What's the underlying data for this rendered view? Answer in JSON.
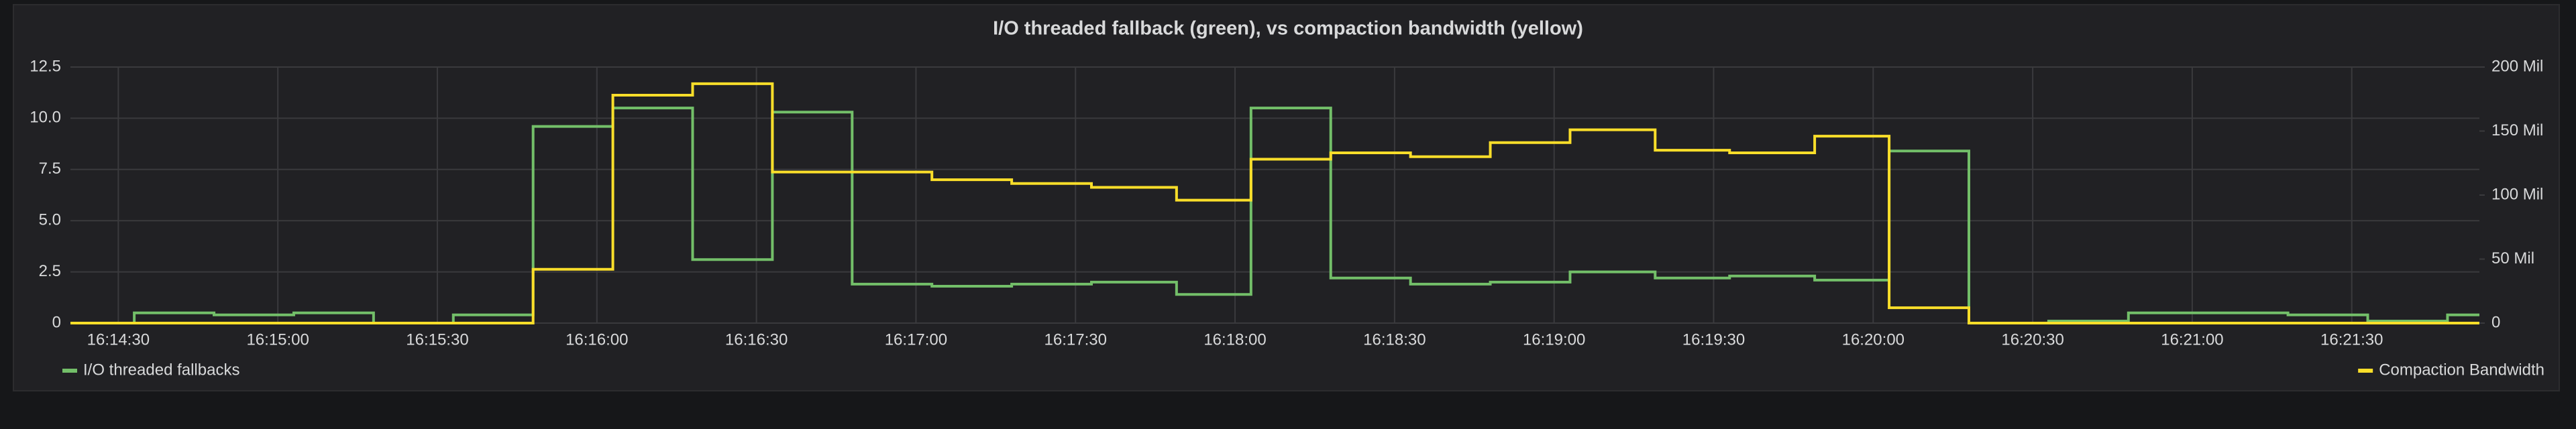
{
  "chart_data": {
    "type": "line",
    "step": "after",
    "title": "I/O threaded fallback (green), vs compaction bandwidth (yellow)",
    "xlim": [
      58461,
      58914
    ],
    "xticks": [
      {
        "value": 58470,
        "label": "16:14:30"
      },
      {
        "value": 58500,
        "label": "16:15:00"
      },
      {
        "value": 58530,
        "label": "16:15:30"
      },
      {
        "value": 58560,
        "label": "16:16:00"
      },
      {
        "value": 58590,
        "label": "16:16:30"
      },
      {
        "value": 58620,
        "label": "16:17:00"
      },
      {
        "value": 58650,
        "label": "16:17:30"
      },
      {
        "value": 58680,
        "label": "16:18:00"
      },
      {
        "value": 58710,
        "label": "16:18:30"
      },
      {
        "value": 58740,
        "label": "16:19:00"
      },
      {
        "value": 58770,
        "label": "16:19:30"
      },
      {
        "value": 58800,
        "label": "16:20:00"
      },
      {
        "value": 58830,
        "label": "16:20:30"
      },
      {
        "value": 58860,
        "label": "16:21:00"
      },
      {
        "value": 58890,
        "label": "16:21:30"
      }
    ],
    "ylim": [
      0,
      12.5
    ],
    "yticks": [
      0,
      {
        "value": 2.5,
        "label": "2.5"
      },
      {
        "value": 5,
        "label": "5.0"
      },
      {
        "value": 7.5,
        "label": "7.5"
      },
      {
        "value": 10,
        "label": "10.0"
      },
      {
        "value": 12.5,
        "label": "12.5"
      }
    ],
    "y2lim": [
      0,
      200000000
    ],
    "y2ticks": [
      0,
      {
        "value": 50000000,
        "label": "50 Mil"
      },
      {
        "value": 100000000,
        "label": "100 Mil"
      },
      {
        "value": 150000000,
        "label": "150 Mil"
      },
      {
        "value": 200000000,
        "label": "200 Mil"
      }
    ],
    "grid": true,
    "series": [
      {
        "name": "I/O threaded fallbacks",
        "color": "#73bf69",
        "x": [
          58461,
          58473,
          58488,
          58503,
          58518,
          58533,
          58548,
          58563,
          58578,
          58593,
          58608,
          58623,
          58638,
          58653,
          58669,
          58683,
          58698,
          58713,
          58728,
          58743,
          58759,
          58773,
          58789,
          58803,
          58818,
          58833,
          58848,
          58878,
          58893,
          58908,
          58914
        ],
        "values": [
          0,
          0.5,
          0.4,
          0.5,
          0,
          0.4,
          9.6,
          10.5,
          3.1,
          10.3,
          1.9,
          1.8,
          1.9,
          2.0,
          1.4,
          10.5,
          2.2,
          1.9,
          2.0,
          2.5,
          2.2,
          2.3,
          2.1,
          8.4,
          0,
          0.1,
          0.5,
          0.4,
          0.1,
          0.4,
          0.4
        ]
      },
      {
        "name": "Compaction Bandwidth",
        "color": "#fade2a",
        "axis": "y2",
        "x": [
          58461,
          58548,
          58563,
          58578,
          58593,
          58623,
          58638,
          58653,
          58669,
          58683,
          58698,
          58713,
          58728,
          58743,
          58759,
          58773,
          58789,
          58803,
          58818,
          58914
        ],
        "values": [
          0,
          42000000,
          178000000,
          187000000,
          118000000,
          112000000,
          109000000,
          106000000,
          96000000,
          128000000,
          133000000,
          130000000,
          141000000,
          151000000,
          135000000,
          133000000,
          146000000,
          12000000,
          0,
          0
        ]
      }
    ]
  }
}
